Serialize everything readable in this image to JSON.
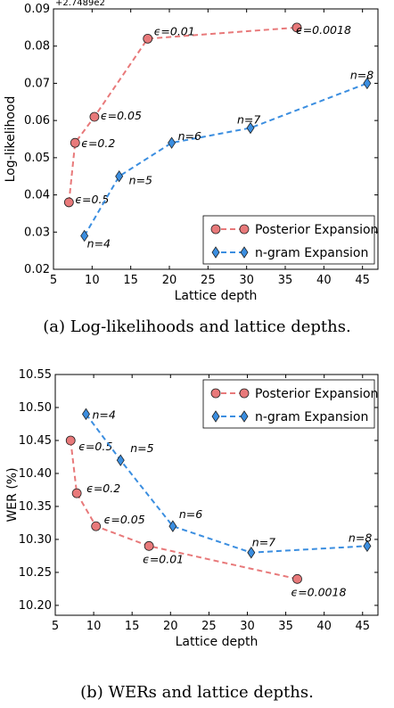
{
  "captions": {
    "a": "(a) Log-likelihoods and lattice depths.",
    "b": "(b) WERs and lattice depths."
  },
  "colors": {
    "posterior": "#e8797a",
    "ngram": "#3b8ee0",
    "marker_edge": "#222222"
  },
  "chart_data": [
    {
      "type": "line",
      "title": "",
      "xlabel": "Lattice depth",
      "ylabel": "Log-likelihood",
      "offset_label": "+2.7489e2",
      "xlim": [
        5,
        47
      ],
      "ylim": [
        0.02,
        0.09
      ],
      "xticks": [
        5,
        10,
        15,
        20,
        25,
        30,
        35,
        40,
        45
      ],
      "yticks": [
        "0.02",
        "0.03",
        "0.04",
        "0.05",
        "0.06",
        "0.07",
        "0.08",
        "0.09"
      ],
      "grid": false,
      "legend_position": "lower-right",
      "series": [
        {
          "name": "Posterior Expansion",
          "marker": "circle",
          "color": "#e8797a",
          "x": [
            7,
            7.8,
            10.3,
            17.2,
            36.5
          ],
          "y": [
            0.038,
            0.054,
            0.061,
            0.082,
            0.085
          ],
          "labels": [
            "ϵ=0.5",
            "ϵ=0.2",
            "ϵ=0.05",
            "ϵ=0.01",
            "ϵ=0.0018"
          ],
          "label_dx": [
            0,
            0,
            0,
            0,
            -8
          ],
          "label_dy": [
            -4,
            0,
            -2,
            -9,
            2
          ]
        },
        {
          "name": "n-gram Expansion",
          "marker": "diamond",
          "color": "#3b8ee0",
          "x": [
            9,
            13.5,
            20.3,
            30.5,
            45.6
          ],
          "y": [
            0.029,
            0.045,
            0.054,
            0.058,
            0.07
          ],
          "labels": [
            "n=4",
            "n=5",
            "n=6",
            "n=7",
            "n=8"
          ],
          "label_dx": [
            -4,
            4,
            0,
            -22,
            -26
          ],
          "label_dy": [
            8,
            4,
            -8,
            -10,
            -10
          ]
        }
      ]
    },
    {
      "type": "line",
      "title": "",
      "xlabel": "Lattice depth",
      "ylabel": "WER (%)",
      "xlim": [
        5,
        47
      ],
      "ylim": [
        10.185,
        10.55
      ],
      "xticks": [
        5,
        10,
        15,
        20,
        25,
        30,
        35,
        40,
        45
      ],
      "yticks": [
        "10.20",
        "10.25",
        "10.30",
        "10.35",
        "10.40",
        "10.45",
        "10.50",
        "10.55"
      ],
      "grid": false,
      "legend_position": "upper-right",
      "series": [
        {
          "name": "Posterior Expansion",
          "marker": "circle",
          "color": "#e8797a",
          "x": [
            7,
            7.8,
            10.3,
            17.2,
            36.5
          ],
          "y": [
            10.45,
            10.37,
            10.32,
            10.29,
            10.24
          ],
          "labels": [
            "ϵ=0.5",
            "ϵ=0.2",
            "ϵ=0.05",
            "ϵ=0.01",
            "ϵ=0.0018"
          ],
          "label_dx": [
            2,
            4,
            2,
            -14,
            -14
          ],
          "label_dy": [
            6,
            -6,
            -8,
            14,
            14
          ]
        },
        {
          "name": "n-gram Expansion",
          "marker": "diamond",
          "color": "#3b8ee0",
          "x": [
            9,
            13.5,
            20.3,
            30.5,
            45.6
          ],
          "y": [
            10.49,
            10.42,
            10.32,
            10.28,
            10.29
          ],
          "labels": [
            "n=4",
            "n=5",
            "n=6",
            "n=7",
            "n=8"
          ],
          "label_dx": [
            0,
            4,
            0,
            -6,
            -28
          ],
          "label_dy": [
            0,
            -14,
            -14,
            -12,
            -10
          ]
        }
      ]
    }
  ]
}
